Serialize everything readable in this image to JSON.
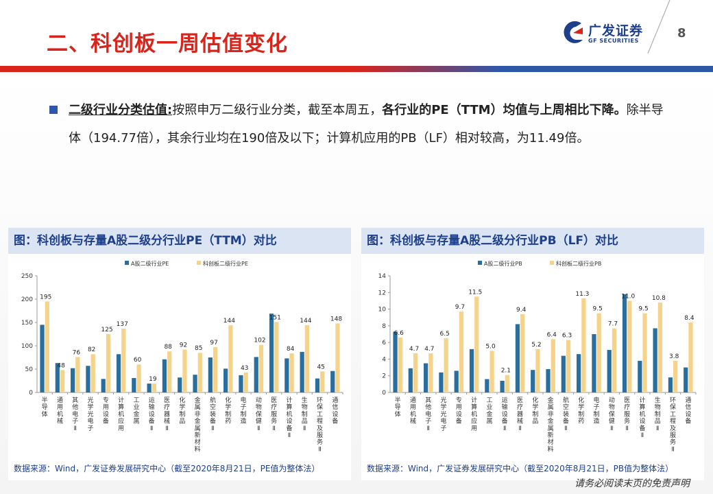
{
  "header": {
    "title": "二、科创板一周估值变化",
    "page_number": "8",
    "logo_cn": "广发证券",
    "logo_en": "GF SECURITIES"
  },
  "summary": {
    "lead": "二级行业分类估值:",
    "part1": "按照申万二级行业分类，截至本周五，",
    "part2": "各行业的PE（TTM）均值与上周相比下降。",
    "part3": "除半导体（194.77倍），其余行业均在190倍及以下；计算机应用的PB（LF）相对较高，为11.49倍。"
  },
  "charts": {
    "pe": {
      "heading": "图：科创板与存量A股二级分行业PE（TTM）对比",
      "source": "数据来源：Wind，广发证券发展研究中心（截至2020年8月21日，PE值为整体法）"
    },
    "pb": {
      "heading": "图：科创板与存量A股二级分行业PB（LF）对比",
      "source": "数据来源：Wind，广发证券发展研究中心（截至2020年8月21日，PB值为整体法）"
    }
  },
  "chart_data": [
    {
      "type": "bar",
      "title": "",
      "categories": [
        "半导体",
        "通用机械",
        "其他电子Ⅱ",
        "光学光电子",
        "专用设备",
        "计算机应用",
        "工业金属",
        "运输设备Ⅱ",
        "医疗器械Ⅱ",
        "化学制品",
        "金属非金属新材料",
        "航空装备Ⅱ",
        "化学制药",
        "电子制造",
        "动物保健Ⅱ",
        "医疗服务Ⅱ",
        "计算机设备Ⅱ",
        "生物制品Ⅱ",
        "环保工程及服务Ⅱ",
        "通信设备"
      ],
      "series": [
        {
          "name": "A股二级行业PE",
          "values": [
            145,
            63,
            52,
            57,
            29,
            82,
            31,
            19,
            71,
            32,
            38,
            75,
            51,
            37,
            76,
            169,
            73,
            87,
            30,
            46
          ],
          "color": "#2a6e9e"
        },
        {
          "name": "科创板二级行业PE",
          "values": [
            195,
            48,
            76,
            82,
            125,
            137,
            60,
            19,
            88,
            92,
            85,
            97,
            144,
            43,
            102,
            151,
            84,
            144,
            45,
            148
          ],
          "color": "#f5d38a"
        }
      ],
      "data_labels": [
        "195",
        "48",
        "76",
        "82",
        "125",
        "137",
        "60",
        "19",
        "88",
        "92",
        "85",
        "97",
        "144",
        "43",
        "102",
        "151",
        "84",
        "144",
        "45",
        "148"
      ],
      "ylim": [
        0,
        250
      ],
      "yticks": [
        0,
        50,
        100,
        150,
        200,
        250
      ],
      "legend": "top-center",
      "grid": false
    },
    {
      "type": "bar",
      "title": "",
      "categories": [
        "半导体",
        "通用机械",
        "其他电子Ⅱ",
        "光学光电子",
        "专用设备",
        "计算机应用",
        "工业金属",
        "运输设备Ⅱ",
        "医疗器械Ⅱ",
        "化学制品",
        "金属非金属新材料",
        "航空装备Ⅱ",
        "化学制药",
        "电子制造",
        "动物保健Ⅱ",
        "医疗服务Ⅱ",
        "计算机设备Ⅱ",
        "生物制品Ⅱ",
        "环保工程及服务Ⅱ",
        "通信设备"
      ],
      "series": [
        {
          "name": "A股二级行业PB",
          "values": [
            7.3,
            2.9,
            3.5,
            2.4,
            2.6,
            5.2,
            1.6,
            1.4,
            8.2,
            2.7,
            2.8,
            4.4,
            4.6,
            7.0,
            5.1,
            11.8,
            3.8,
            7.7,
            1.8,
            3.0
          ],
          "color": "#2a6e9e"
        },
        {
          "name": "科创板二级行业PB",
          "values": [
            6.6,
            4.7,
            4.7,
            6.5,
            9.7,
            11.5,
            5.0,
            2.1,
            9.4,
            5.2,
            6.4,
            6.3,
            11.3,
            9.5,
            7.7,
            11.0,
            9.5,
            10.8,
            3.8,
            8.4
          ],
          "color": "#f5d38a"
        }
      ],
      "data_labels": [
        "6.6",
        "4.7",
        "4.7",
        "6.5",
        "9.7",
        "11.5",
        "5.0",
        "2.1",
        "9.4",
        "5.2",
        "6.4",
        "6.3",
        "11.3",
        "9.5",
        "7.7",
        "11.0",
        "9.5",
        "10.8",
        "3.8",
        "8.4"
      ],
      "ylim": [
        0,
        14
      ],
      "yticks": [
        0,
        2,
        4,
        6,
        8,
        10,
        12,
        14
      ],
      "legend": "top-center",
      "grid": false
    }
  ],
  "footer": {
    "disclaimer": "请务必阅读末页的免责声明"
  }
}
